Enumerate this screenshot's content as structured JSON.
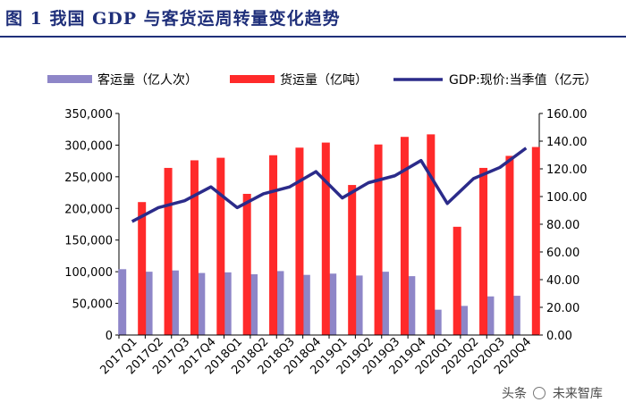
{
  "title": "图 1 我国 GDP 与客货运周转量变化趋势",
  "watermark": {
    "prefix": "头条",
    "name": "未来智库"
  },
  "chart_data": {
    "type": "bar+line",
    "categories": [
      "2017Q1",
      "2017Q2",
      "2017Q3",
      "2017Q4",
      "2018Q1",
      "2018Q2",
      "2018Q3",
      "2018Q4",
      "2019Q1",
      "2019Q2",
      "2019Q3",
      "2019Q4",
      "2020Q1",
      "2020Q2",
      "2020Q3",
      "2020Q4"
    ],
    "left_axis": {
      "min": 0,
      "max": 350000,
      "step": 50000,
      "ticks": [
        "0",
        "50,000",
        "100,000",
        "150,000",
        "200,000",
        "250,000",
        "300,000",
        "350,000"
      ]
    },
    "right_axis": {
      "min": 0,
      "max": 160,
      "step": 20,
      "ticks": [
        "0.00",
        "20.00",
        "40.00",
        "60.00",
        "80.00",
        "100.00",
        "120.00",
        "140.00",
        "160.00"
      ]
    },
    "series": [
      {
        "name": "客运量（亿人次）",
        "type": "bar",
        "axis": "left",
        "color": "#8e86c8",
        "values": [
          104000,
          100000,
          102000,
          98000,
          99000,
          96000,
          101000,
          95000,
          97000,
          94000,
          100000,
          93000,
          40000,
          46000,
          61000,
          62000
        ]
      },
      {
        "name": "货运量（亿吨）",
        "type": "bar",
        "axis": "left",
        "color": "#ff2a2a",
        "values": [
          210000,
          264000,
          276000,
          280000,
          223000,
          284000,
          296000,
          304000,
          237000,
          301000,
          313000,
          317000,
          171000,
          264000,
          283000,
          297000
        ]
      },
      {
        "name": "GDP:现价:当季值（亿元）",
        "type": "line",
        "axis": "right",
        "color": "#2b2b8a",
        "values": [
          82,
          92,
          97,
          107,
          92,
          102,
          107,
          118,
          99,
          110,
          115,
          126,
          95,
          113,
          121,
          135
        ]
      }
    ]
  }
}
